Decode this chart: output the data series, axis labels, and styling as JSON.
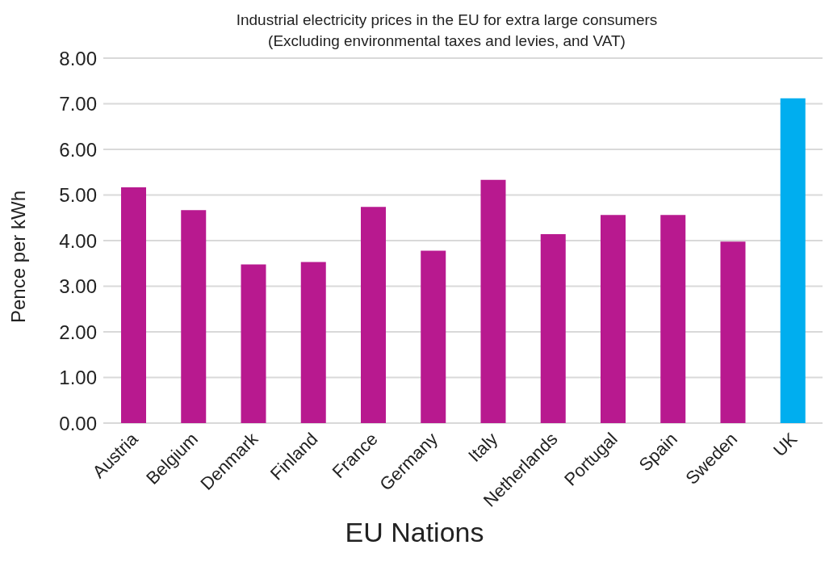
{
  "chart_data": {
    "type": "bar",
    "title": "Industrial electricity prices in the EU for extra large consumers",
    "subtitle": "(Excluding environmental taxes and levies, and VAT)",
    "xlabel": "EU Nations",
    "ylabel": "Pence per kWh",
    "categories": [
      "Austria",
      "Belgium",
      "Denmark",
      "Finland",
      "France",
      "Germany",
      "Italy",
      "Netherlands",
      "Portugal",
      "Spain",
      "Sweden",
      "UK"
    ],
    "values": [
      5.17,
      4.67,
      3.48,
      3.53,
      4.74,
      3.78,
      5.33,
      4.14,
      4.56,
      4.56,
      3.98,
      7.12
    ],
    "colors": [
      "#b8198f",
      "#b8198f",
      "#b8198f",
      "#b8198f",
      "#b8198f",
      "#b8198f",
      "#b8198f",
      "#b8198f",
      "#b8198f",
      "#b8198f",
      "#b8198f",
      "#00aeef"
    ],
    "ylim": [
      0,
      8
    ],
    "yticks": [
      {
        "value": 0,
        "label": "0.00"
      },
      {
        "value": 1,
        "label": "1.00"
      },
      {
        "value": 2,
        "label": "2.00"
      },
      {
        "value": 3,
        "label": "3.00"
      },
      {
        "value": 4,
        "label": "4.00"
      },
      {
        "value": 5,
        "label": "5.00"
      },
      {
        "value": 6,
        "label": "6.00"
      },
      {
        "value": 7,
        "label": "7.00"
      },
      {
        "value": 8,
        "label": "8.00"
      }
    ],
    "grid": "y",
    "legend": false
  }
}
